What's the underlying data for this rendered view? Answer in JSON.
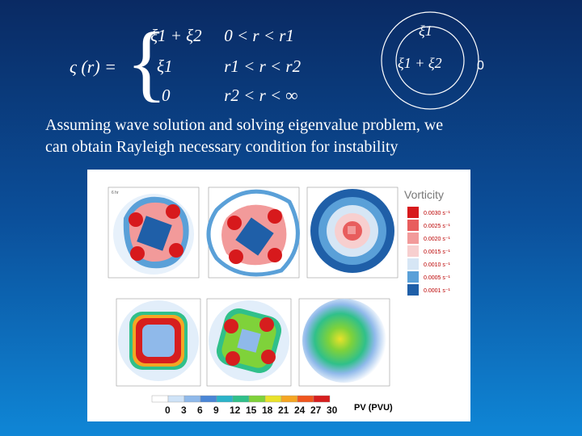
{
  "equation": {
    "lhs": "ς (r) =",
    "rows": [
      {
        "value": "ξ1 + ξ2",
        "range": "0 < r < r1"
      },
      {
        "value": "ξ1",
        "range": "r1 < r < r2"
      },
      {
        "value": "0",
        "range": "r2 < r < ∞"
      }
    ]
  },
  "diagram": {
    "outer_label": "ξ1",
    "inner_label": "ξ1 + ξ2",
    "outside_label": "0"
  },
  "caption": {
    "line1": "Assuming wave solution and solving eigenvalue problem, we",
    "line2": "can obtain Rayleigh necessary condition for instability"
  },
  "figure": {
    "vorticity_title": "Vorticity",
    "vorticity_legend": [
      "0.0030 s⁻¹",
      "0.0025 s⁻¹",
      "0.0020 s⁻¹",
      "0.0015 s⁻¹",
      "0.0010 s⁻¹",
      "0.0005 s⁻¹",
      "0.0001 s⁻¹"
    ],
    "vorticity_colors": [
      "#d7191c",
      "#e85d5d",
      "#f29a9a",
      "#f7cfcf",
      "#d6e6f5",
      "#5aa0d8",
      "#1f5fa8"
    ],
    "pv_ticks": [
      "0",
      "3",
      "6",
      "9",
      "12",
      "15",
      "18",
      "21",
      "24",
      "27",
      "30"
    ],
    "pv_colors": [
      "#ffffff",
      "#cfe3f7",
      "#8fb9ea",
      "#4a86d6",
      "#2bb3c9",
      "#30c08a",
      "#7fd23a",
      "#e9e22a",
      "#f5a623",
      "#f0561e",
      "#d61e1e"
    ],
    "pv_label": "PV (PVU)"
  }
}
